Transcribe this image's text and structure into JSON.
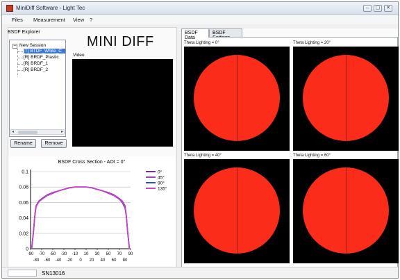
{
  "window": {
    "title": "MiniDiff Software - Light Tec"
  },
  "window_buttons": {
    "minimize": "–",
    "maximize": "▢",
    "close": "✕"
  },
  "menu": [
    "Files",
    "Measurement",
    "View",
    "?"
  ],
  "explorer": {
    "label": "BSDF Explorer",
    "expander": "–",
    "root": "New Session",
    "items": [
      "[T] BTDF_White_C",
      "[R] BRDF_Plastic",
      "[R] BRDF_1",
      "[R] BRDF_2"
    ],
    "selected_index": 0
  },
  "buttons": {
    "rename": "Rename",
    "remove": "Remove"
  },
  "header": {
    "app_name": "MINI DIFF",
    "video_label": "Video"
  },
  "tabs": [
    {
      "label": "BSDF Data",
      "active": true
    },
    {
      "label": "BSDF Settings",
      "active": false
    }
  ],
  "plots": [
    {
      "label": "Theta Lighting = 0°"
    },
    {
      "label": "Theta Lighting = 20°"
    },
    {
      "label": "Theta Lighting = 40°"
    },
    {
      "label": "Theta Lighting = 60°"
    }
  ],
  "colors": {
    "plot_red": "#fb2c1a",
    "selection": "#3a78d2"
  },
  "status": {
    "serial": "SN13016",
    "progress": 0
  },
  "chart_data": {
    "type": "line",
    "title": "BSDF Cross Section - AOI = 0°",
    "xlabel": "",
    "ylabel": "",
    "xlim": [
      -90,
      90
    ],
    "ylim": [
      0,
      0.1
    ],
    "yticks": [
      0,
      0.02,
      0.04,
      0.06,
      0.08,
      0.1
    ],
    "ytick_labels": [
      "0",
      "0.02",
      "0.04",
      "0.06",
      "0.08",
      "0.1"
    ],
    "xticks_top": [
      -90,
      -70,
      -50,
      -30,
      -10,
      10,
      30,
      50,
      70,
      90
    ],
    "xticks_bottom": [
      -80,
      -60,
      -40,
      -20,
      0,
      20,
      40,
      60,
      80
    ],
    "x": [
      -88,
      -85,
      -82,
      -80,
      -75,
      -70,
      -60,
      -50,
      -40,
      -30,
      -20,
      -10,
      0,
      10,
      20,
      30,
      40,
      50,
      60,
      70,
      75,
      80,
      82,
      85,
      88
    ],
    "series": [
      {
        "name": "0°",
        "color": "#7030a0",
        "values": [
          0,
          0.02,
          0.045,
          0.055,
          0.061,
          0.064,
          0.069,
          0.072,
          0.075,
          0.077,
          0.079,
          0.08,
          0.08,
          0.08,
          0.079,
          0.077,
          0.075,
          0.072,
          0.069,
          0.064,
          0.061,
          0.055,
          0.045,
          0.02,
          0
        ]
      },
      {
        "name": "45°",
        "color": "#a040c0",
        "values": [
          0,
          0.021,
          0.046,
          0.056,
          0.062,
          0.065,
          0.07,
          0.073,
          0.075,
          0.077,
          0.079,
          0.08,
          0.08,
          0.08,
          0.079,
          0.077,
          0.075,
          0.073,
          0.07,
          0.065,
          0.062,
          0.056,
          0.046,
          0.021,
          0
        ]
      },
      {
        "name": "90°",
        "color": "#3050b0",
        "values": [
          0,
          0.02,
          0.044,
          0.055,
          0.061,
          0.064,
          0.069,
          0.072,
          0.075,
          0.077,
          0.079,
          0.08,
          0.08,
          0.08,
          0.079,
          0.077,
          0.075,
          0.072,
          0.069,
          0.064,
          0.06,
          0.053,
          0.044,
          0.02,
          0
        ]
      },
      {
        "name": "135°",
        "color": "#d040c8",
        "values": [
          0,
          0.021,
          0.045,
          0.055,
          0.061,
          0.064,
          0.069,
          0.072,
          0.075,
          0.077,
          0.079,
          0.08,
          0.08,
          0.08,
          0.079,
          0.077,
          0.075,
          0.072,
          0.069,
          0.064,
          0.061,
          0.055,
          0.045,
          0.021,
          0
        ]
      }
    ]
  }
}
